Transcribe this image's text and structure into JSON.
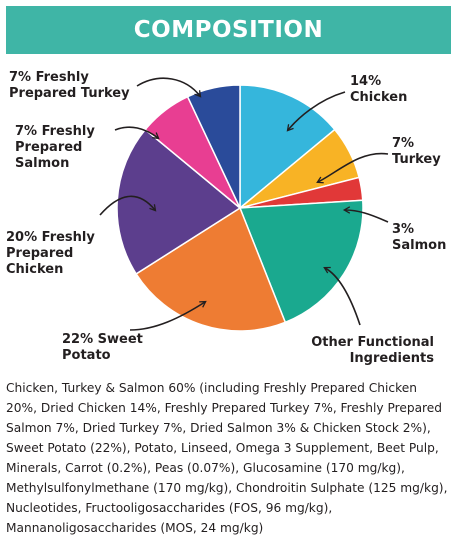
{
  "header": {
    "title": "COMPOSITION"
  },
  "chart_data": {
    "type": "pie",
    "title": "COMPOSITION",
    "slices": [
      {
        "name": "Chicken",
        "value": 14,
        "label_lines": [
          "14%",
          "Chicken"
        ],
        "color": "#35b6dc"
      },
      {
        "name": "Turkey",
        "value": 7,
        "label_lines": [
          "7%",
          "Turkey"
        ],
        "color": "#f8b325"
      },
      {
        "name": "Salmon",
        "value": 3,
        "label_lines": [
          "3%",
          "Salmon"
        ],
        "color": "#e13838"
      },
      {
        "name": "Other Functional Ingredients",
        "value": 20,
        "label_lines": [
          "Other Functional",
          "Ingredients"
        ],
        "color": "#1aa98f"
      },
      {
        "name": "Sweet Potato",
        "value": 22,
        "label_lines": [
          "22% Sweet",
          "Potato"
        ],
        "color": "#ee7c33"
      },
      {
        "name": "Freshly Prepared Chicken",
        "value": 20,
        "label_lines": [
          "20% Freshly",
          "Prepared",
          "Chicken"
        ],
        "color": "#5c3e8d"
      },
      {
        "name": "Freshly Prepared Salmon",
        "value": 7,
        "label_lines": [
          "7% Freshly",
          "Prepared",
          "Salmon"
        ],
        "color": "#e83e92"
      },
      {
        "name": "Freshly Prepared Turkey",
        "value": 7,
        "label_lines": [
          "7% Freshly",
          "Prepared Turkey"
        ],
        "color": "#2a4b9a"
      }
    ]
  },
  "description": "Chicken, Turkey & Salmon 60% (including Freshly Prepared Chicken 20%, Dried Chicken 14%, Freshly Prepared Turkey 7%, Freshly Prepared Salmon 7%, Dried Turkey 7%, Dried Salmon 3% & Chicken Stock 2%), Sweet Potato (22%), Potato, Linseed, Omega 3 Supplement, Beet Pulp, Minerals, Carrot (0.2%), Peas (0.07%), Glucosamine (170 mg/kg), Methylsulfonylmethane (170 mg/kg), Chondroitin Sulphate (125 mg/kg), Nucleotides, Fructooligosaccharides (FOS, 96 mg/kg), Mannanoligosaccharides (MOS, 24 mg/kg)"
}
